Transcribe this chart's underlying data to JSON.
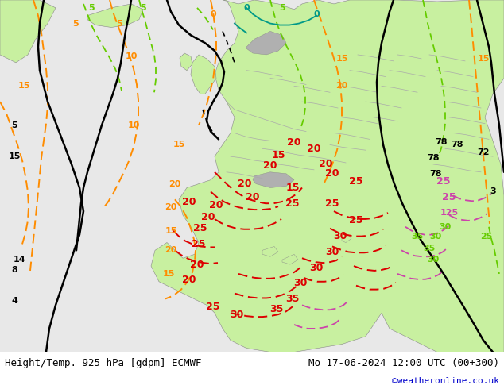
{
  "bottom_left_text": "Height/Temp. 925 hPa [gdpm] ECMWF",
  "bottom_right_text": "Mo 17-06-2024 12:00 UTC (00+300)",
  "bottom_right_text2": "©weatheronline.co.uk",
  "bottom_text_color": "#000000",
  "bottom_text2_color": "#0000cc",
  "fig_width": 6.34,
  "fig_height": 4.9,
  "dpi": 100,
  "bg_color": "#ffffff",
  "ocean_color": "#e8e8e8",
  "land_color": "#c8f0a0",
  "mountain_color": "#b0b0b0",
  "font_size_bottom": 9,
  "font_size_credit": 8
}
